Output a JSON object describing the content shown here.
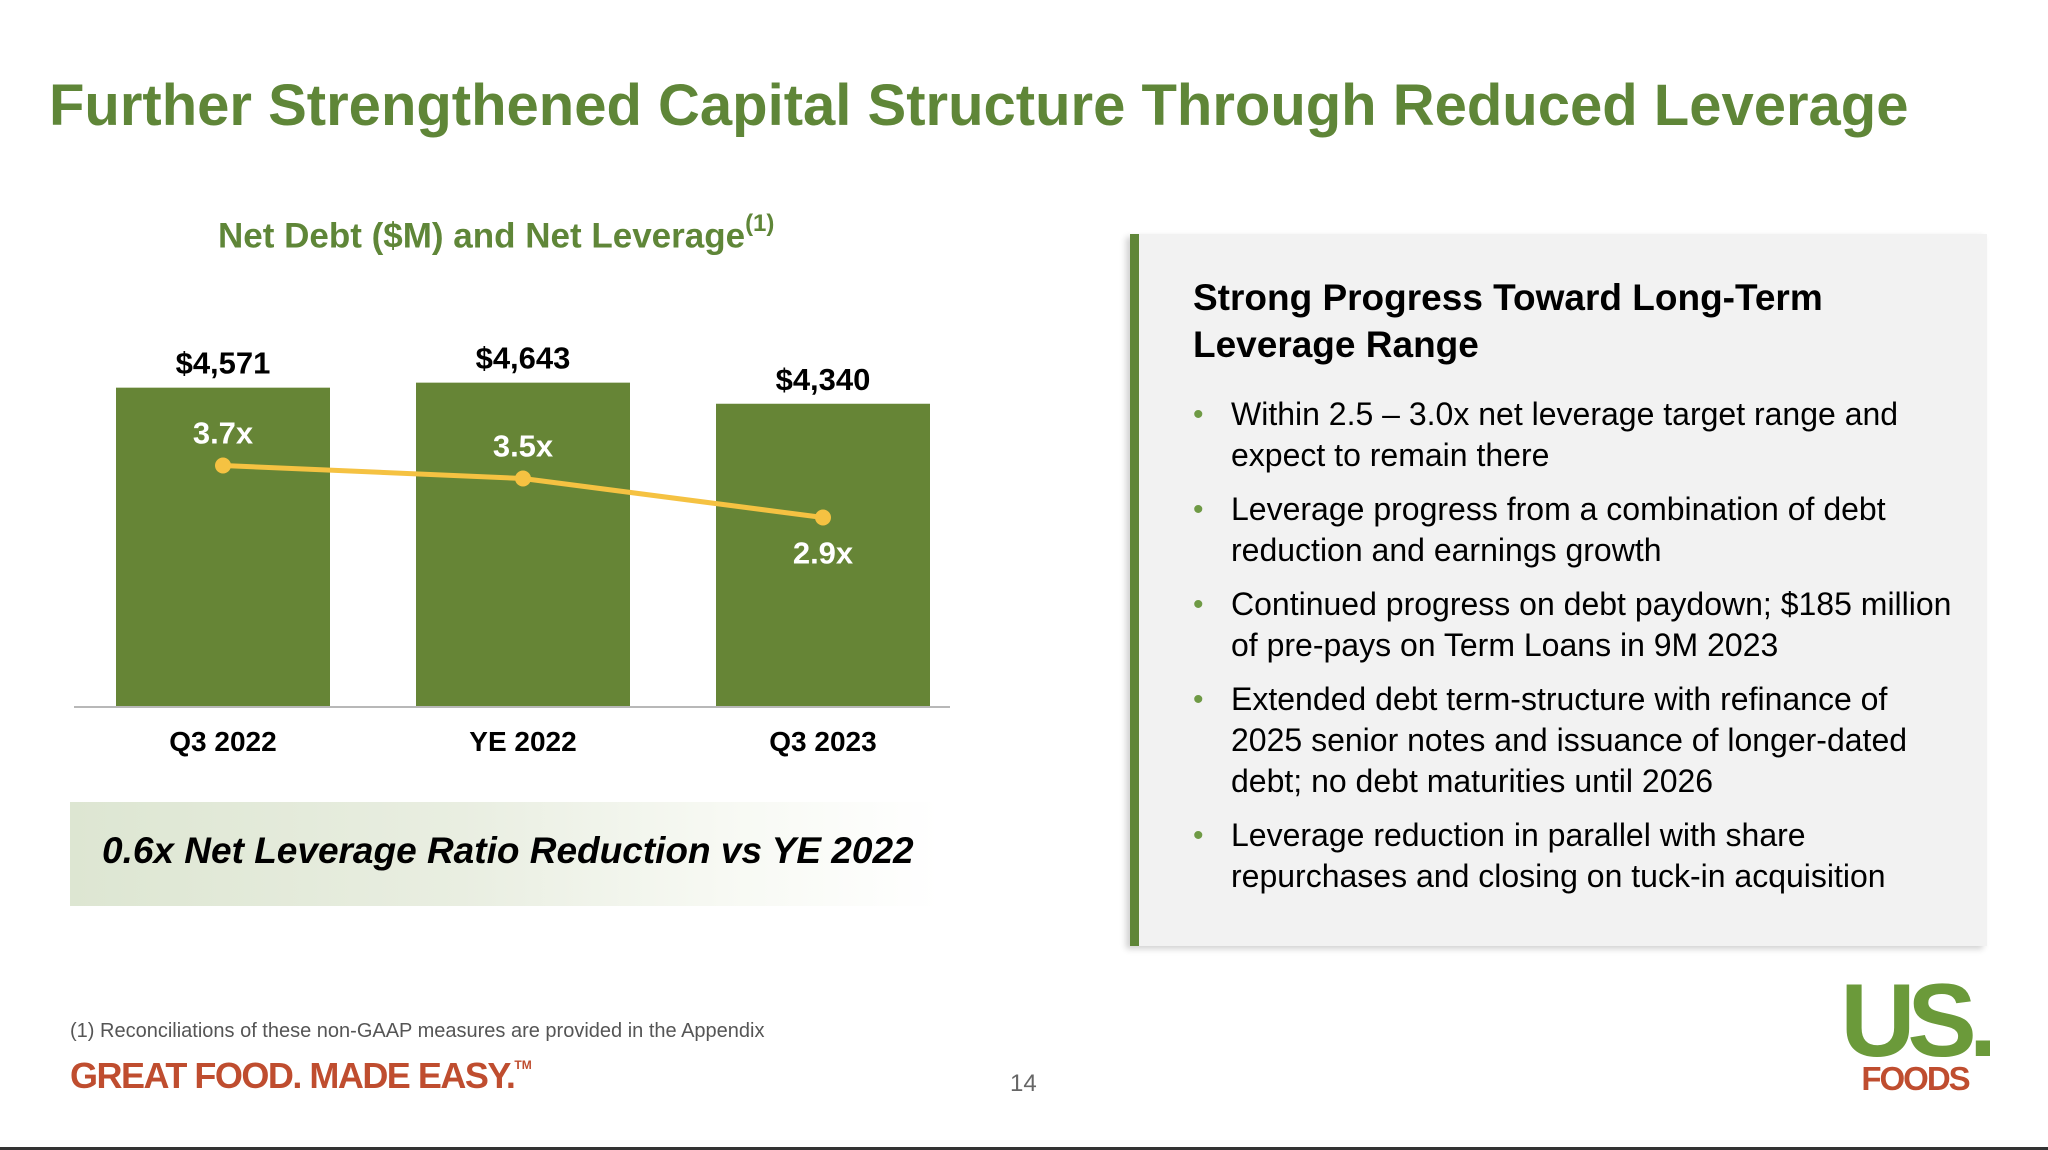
{
  "title": "Further Strengthened Capital Structure Through Reduced Leverage",
  "chart_title": {
    "text": "Net Debt ($M) and Net Leverage",
    "superscript": "(1)"
  },
  "chart_data": {
    "type": "bar",
    "categories": [
      "Q3 2022",
      "YE 2022",
      "Q3 2023"
    ],
    "series": [
      {
        "type": "bar",
        "values": [
          4571,
          4643,
          4340
        ],
        "labels": [
          "$4,571",
          "$4,643",
          "$4,340"
        ],
        "color": "#668536"
      },
      {
        "type": "line",
        "values": [
          3.7,
          3.5,
          2.9
        ],
        "labels": [
          "3.7x",
          "3.5x",
          "2.9x"
        ],
        "color": "#f5c242"
      }
    ],
    "ylim": [
      0,
      5600
    ],
    "line_ylim": [
      0,
      6.0
    ],
    "grid": false,
    "legend": "none"
  },
  "banner": "0.6x Net Leverage Ratio Reduction vs YE 2022",
  "panel": {
    "title": "Strong Progress Toward Long-Term Leverage Range",
    "bullets": [
      "Within 2.5 – 3.0x net leverage target range and expect to remain there",
      "Leverage progress from a combination of debt reduction and earnings growth",
      "Continued progress on debt paydown; $185 million of pre-pays on Term Loans in 9M 2023",
      "Extended debt term-structure with refinance of 2025 senior notes and issuance of longer-dated debt; no debt maturities until 2026",
      "Leverage reduction in parallel with share repurchases and closing on tuck-in acquisition"
    ]
  },
  "footnote": "(1) Reconciliations of these non-GAAP measures are provided in the Appendix",
  "tagline": "GREAT FOOD. MADE EASY.",
  "tagline_mark": "TM",
  "page_number": "14",
  "logo": {
    "line1": "US.",
    "line2": "FOODS"
  },
  "colors": {
    "brand_green": "#5f8638",
    "bar_green": "#668536",
    "leverage_line": "#f5c242",
    "tagline_red": "#bf4d2f"
  }
}
